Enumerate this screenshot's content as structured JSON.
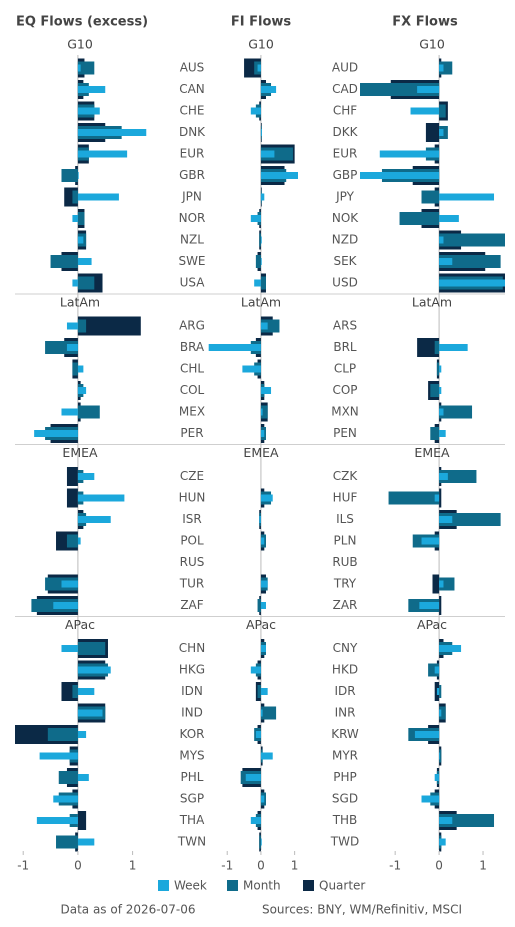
{
  "chart_data": [
    {
      "type": "bar",
      "title": "EQ Flows (excess)",
      "groups": [
        {
          "name": "G10",
          "categories": [
            "AUS",
            "CAN",
            "CHE",
            "DNK",
            "EUR",
            "GBR",
            "JPN",
            "NOR",
            "NZL",
            "SWE",
            "USA"
          ]
        },
        {
          "name": "LatAm",
          "categories": [
            "ARG",
            "BRA",
            "CHL",
            "COL",
            "MEX",
            "PER"
          ]
        },
        {
          "name": "EMEA",
          "categories": [
            "CZE",
            "HUN",
            "ISR",
            "POL",
            "RUS",
            "TUR",
            "ZAF"
          ]
        },
        {
          "name": "APac",
          "categories": [
            "CHN",
            "HKG",
            "IDN",
            "IND",
            "KOR",
            "MYS",
            "PHL",
            "SGP",
            "THA",
            "TWN"
          ]
        }
      ],
      "series": [
        {
          "name": "Week",
          "color": "#1ba8dc",
          "values": [
            [
              0.05,
              0.5,
              0.4,
              1.25,
              0.9,
              0,
              0.75,
              -0.1,
              0.1,
              0.25,
              -0.1
            ],
            [
              -0.2,
              -0.2,
              0.1,
              0.15,
              -0.3,
              -0.8
            ],
            [
              0.3,
              0.85,
              0.6,
              0.05,
              null,
              -0.3,
              -0.45
            ],
            [
              -0.3,
              0.6,
              0.3,
              0.45,
              0.15,
              -0.7,
              0.2,
              -0.45,
              -0.75,
              0.3
            ]
          ]
        },
        {
          "name": "Month",
          "color": "#0f6b8a",
          "values": [
            [
              0.3,
              0.2,
              0.3,
              0.8,
              0.2,
              -0.3,
              -0.1,
              0.12,
              0.15,
              -0.5,
              0.3
            ],
            [
              0.15,
              -0.6,
              -0.1,
              0.1,
              0.4,
              -0.6
            ],
            [
              0.1,
              0.1,
              0.15,
              -0.2,
              null,
              -0.6,
              -0.85
            ],
            [
              0.5,
              0.55,
              -0.1,
              0.5,
              -0.55,
              -0.15,
              -0.35,
              -0.35,
              -0.15,
              -0.4
            ]
          ]
        },
        {
          "name": "Quarter",
          "color": "#0b2946",
          "values": [
            [
              0.12,
              0.1,
              0.3,
              0.5,
              0.2,
              -0.05,
              -0.25,
              0.12,
              0.15,
              -0.3,
              0.45
            ],
            [
              1.15,
              -0.25,
              -0.1,
              0.05,
              0.05,
              -0.5
            ],
            [
              -0.2,
              -0.2,
              0.1,
              -0.4,
              null,
              -0.55,
              -0.75
            ],
            [
              0.55,
              0.5,
              -0.3,
              0.5,
              -1.15,
              -0.15,
              -0.2,
              -0.1,
              0.15,
              -0.05
            ]
          ]
        }
      ],
      "xlim": [
        -1.15,
        1.3
      ],
      "xticks": [
        -1,
        0,
        1
      ]
    },
    {
      "type": "bar",
      "title": "FI Flows",
      "groups": [
        {
          "name": "G10"
        },
        {
          "name": "LatAm"
        },
        {
          "name": "EMEA"
        },
        {
          "name": "APac"
        }
      ],
      "series": [
        {
          "color": "#1ba8dc",
          "values": [
            [
              -0.1,
              0.45,
              -0.3,
              0.03,
              0.4,
              1.1,
              0.1,
              -0.3,
              0,
              0,
              -0.2
            ],
            [
              0.2,
              -1.55,
              -0.55,
              0.3,
              0.05,
              0.1
            ],
            [
              null,
              0.35,
              -0.05,
              0.1,
              null,
              0.2,
              0.15
            ],
            [
              0.15,
              -0.3,
              0.2,
              0.05,
              -0.15,
              0.35,
              -0.45,
              0.1,
              -0.3,
              0
            ]
          ]
        },
        {
          "color": "#0f6b8a",
          "values": [
            [
              -0.2,
              0.3,
              -0.15,
              0,
              0.95,
              0.75,
              0,
              -0.1,
              -0.05,
              -0.15,
              0.15
            ],
            [
              0.55,
              -0.3,
              -0.2,
              0.1,
              0.2,
              0.15
            ],
            [
              null,
              0.3,
              -0.05,
              0.15,
              null,
              0.2,
              -0.1
            ],
            [
              0.15,
              -0.15,
              -0.1,
              0.45,
              -0.2,
              0.05,
              -0.6,
              0.15,
              -0.15,
              -0.05
            ]
          ]
        },
        {
          "color": "#0b2946",
          "values": [
            [
              -0.5,
              0.15,
              -0.05,
              0,
              1.0,
              0.7,
              0,
              -0.05,
              -0.05,
              -0.1,
              0.15
            ],
            [
              0.35,
              -0.15,
              -0.1,
              0.1,
              0.2,
              0.1
            ],
            [
              null,
              0.1,
              -0.05,
              0.1,
              null,
              0.15,
              -0.05
            ],
            [
              0.1,
              -0.1,
              -0.15,
              0.1,
              -0.1,
              0.05,
              -0.55,
              0.1,
              -0.1,
              -0.05
            ]
          ]
        }
      ],
      "xlim": [
        -1.6,
        1.1
      ],
      "xticks": [
        -1,
        0,
        1
      ]
    },
    {
      "type": "bar",
      "title": "FX Flows",
      "groups": [
        {
          "name": "G10",
          "categories": [
            "AUD",
            "CAD",
            "CHF",
            "DKK",
            "EUR",
            "GBP",
            "JPY",
            "NOK",
            "NZD",
            "SEK",
            "USD"
          ]
        },
        {
          "name": "LatAm",
          "categories": [
            "ARS",
            "BRL",
            "CLP",
            "COP",
            "MXN",
            "PEN"
          ]
        },
        {
          "name": "EMEA",
          "categories": [
            "CZK",
            "HUF",
            "ILS",
            "PLN",
            "RUB",
            "TRY",
            "ZAR"
          ]
        },
        {
          "name": "APac",
          "categories": [
            "CNY",
            "HKD",
            "IDR",
            "INR",
            "KRW",
            "MYR",
            "PHP",
            "SGD",
            "THB",
            "TWD"
          ]
        }
      ],
      "series": [
        {
          "color": "#1ba8dc",
          "values": [
            [
              0.1,
              -0.5,
              -0.65,
              0.1,
              -1.35,
              -1.8,
              1.25,
              0.45,
              0.1,
              0.3,
              1.5
            ],
            [
              null,
              0.65,
              0.05,
              0.05,
              0.1,
              0.15
            ],
            [
              0.2,
              -0.1,
              0.3,
              -0.4,
              null,
              0.1,
              -0.45
            ],
            [
              0.5,
              -0.1,
              -0.05,
              0.05,
              -0.55,
              0,
              -0.1,
              -0.4,
              0.3,
              0.15
            ]
          ]
        },
        {
          "color": "#0f6b8a",
          "values": [
            [
              0.3,
              -1.8,
              0.15,
              0.2,
              -0.3,
              -1.3,
              -0.4,
              -0.9,
              1.5,
              1.4,
              1.45
            ],
            [
              null,
              -0.1,
              -0.05,
              -0.2,
              0.75,
              -0.2
            ],
            [
              0.85,
              -1.15,
              1.4,
              -0.6,
              null,
              0.35,
              -0.7
            ],
            [
              0.3,
              -0.25,
              0.05,
              0.15,
              -0.7,
              0.05,
              -0.05,
              -0.2,
              1.25,
              0.05
            ]
          ]
        },
        {
          "color": "#0b2946",
          "values": [
            [
              0.05,
              -1.1,
              0.2,
              -0.3,
              -0.1,
              -0.6,
              -0.1,
              -0.4,
              0.5,
              1.05,
              1.5
            ],
            [
              null,
              -0.5,
              -0.05,
              -0.25,
              0.05,
              -0.1
            ],
            [
              0.05,
              0.05,
              0.4,
              -0.1,
              null,
              -0.15,
              0.05
            ],
            [
              0.1,
              -0.05,
              -0.1,
              0.15,
              -0.25,
              0.05,
              -0.05,
              -0.1,
              0.4,
              0.05
            ]
          ]
        }
      ],
      "xlim": [
        -1.8,
        1.5
      ],
      "xticks": [
        -1,
        0,
        1
      ]
    }
  ],
  "footer": {
    "date_note": "Data as of 2026-07-06",
    "sources": "Sources:  BNY, WM/Refinitiv, MSCI"
  }
}
